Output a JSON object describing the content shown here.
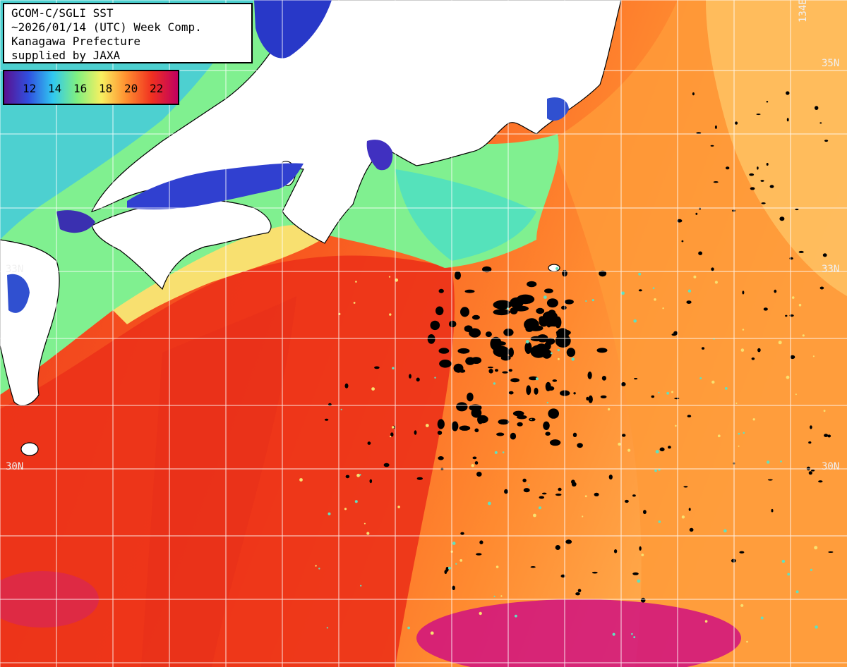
{
  "info": {
    "lines": [
      "GCOM-C/SGLI SST",
      "~2026/01/14 (UTC) Week Comp.",
      "Kanagawa Prefecture",
      "supplied by JAXA"
    ]
  },
  "legend": {
    "ticks": [
      "12",
      "14",
      "16",
      "18",
      "20",
      "22"
    ],
    "colors": [
      "#5a1090",
      "#3050e0",
      "#30c8f0",
      "#80f080",
      "#f8f060",
      "#ff9030",
      "#f03020",
      "#c00060"
    ]
  },
  "grid_labels": {
    "lat_33": "33N",
    "lat_30": "30N",
    "lat_35": "35N",
    "lon_134": "134E"
  },
  "palette": {
    "land": "#ffffff",
    "cold_bay": "#3040d0",
    "coastal_green": "#80f090",
    "cyan": "#40d8d8",
    "yellow": "#f8e070",
    "orange": "#ff8a30",
    "red_orange": "#f85a20",
    "red": "#ee3a1c",
    "magenta": "#d01080",
    "cloud": "#000000",
    "grid": "#ffffff"
  }
}
